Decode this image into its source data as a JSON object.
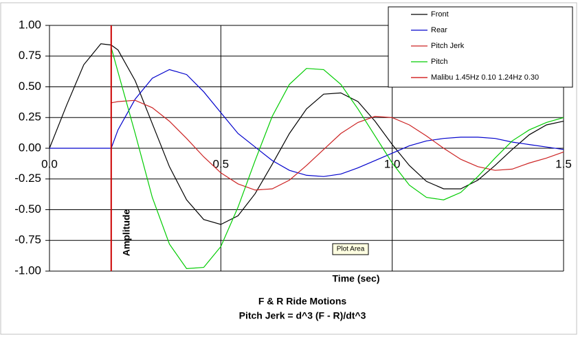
{
  "chart_data": {
    "type": "line",
    "title": "F & R Ride Motions",
    "subtitle": "Pitch Jerk = d^3 (F - R)/dt^3",
    "x_label": "Time (sec)",
    "y_label": "Amplitude",
    "annotation": "Plot Area",
    "x": [
      0,
      0.05,
      0.1,
      0.15,
      0.18,
      0.2,
      0.25,
      0.3,
      0.35,
      0.4,
      0.45,
      0.5,
      0.55,
      0.6,
      0.65,
      0.7,
      0.75,
      0.8,
      0.85,
      0.9,
      0.95,
      1.0,
      1.05,
      1.1,
      1.15,
      1.2,
      1.25,
      1.3,
      1.35,
      1.4,
      1.45,
      1.5
    ],
    "series": [
      {
        "name": "Front",
        "color": "#000000",
        "values": [
          0,
          0.35,
          0.68,
          0.85,
          0.84,
          0.8,
          0.55,
          0.2,
          -0.15,
          -0.42,
          -0.58,
          -0.62,
          -0.55,
          -0.37,
          -0.13,
          0.12,
          0.32,
          0.44,
          0.45,
          0.38,
          0.22,
          0.03,
          -0.14,
          -0.27,
          -0.33,
          -0.33,
          -0.26,
          -0.14,
          -0.01,
          0.11,
          0.19,
          0.22
        ]
      },
      {
        "name": "Rear",
        "color": "#0000cc",
        "values": [
          0,
          0,
          0,
          0,
          0,
          0.15,
          0.4,
          0.57,
          0.64,
          0.6,
          0.46,
          0.29,
          0.12,
          0.01,
          -0.1,
          -0.18,
          -0.22,
          -0.23,
          -0.21,
          -0.16,
          -0.1,
          -0.04,
          0.02,
          0.06,
          0.08,
          0.09,
          0.09,
          0.08,
          0.05,
          0.03,
          0.01,
          -0.01
        ]
      },
      {
        "name": "Pitch Jerk",
        "color": "#cc2222",
        "values": [
          null,
          null,
          null,
          null,
          0.37,
          0.38,
          0.39,
          0.33,
          0.22,
          0.08,
          -0.07,
          -0.2,
          -0.29,
          -0.34,
          -0.33,
          -0.26,
          -0.14,
          -0.01,
          0.12,
          0.21,
          0.26,
          0.25,
          0.19,
          0.1,
          0.0,
          -0.09,
          -0.15,
          -0.18,
          -0.17,
          -0.12,
          -0.08,
          -0.03
        ]
      },
      {
        "name": "Pitch",
        "color": "#00cc00",
        "values": [
          null,
          null,
          null,
          null,
          0.82,
          0.62,
          0.12,
          -0.4,
          -0.78,
          -0.98,
          -0.97,
          -0.8,
          -0.48,
          -0.1,
          0.26,
          0.52,
          0.65,
          0.64,
          0.52,
          0.32,
          0.1,
          -0.12,
          -0.3,
          -0.4,
          -0.42,
          -0.36,
          -0.23,
          -0.08,
          0.06,
          0.15,
          0.21,
          0.25
        ]
      },
      {
        "name": "Malibu 1.45Hz 0.10  1.24Hz 0.30",
        "color": "#cc0000",
        "x": [
          0.18,
          0.18
        ],
        "values": [
          1,
          -1
        ]
      }
    ],
    "xlim": [
      0,
      1.5
    ],
    "ylim": [
      -1,
      1
    ],
    "xticks": [
      {
        "value": 0,
        "label": "0.0"
      },
      0.5,
      {
        "value": 1,
        "label": "1.0"
      },
      1.5
    ],
    "yticks": [
      {
        "value": 1,
        "label": "1.00"
      },
      0.75,
      {
        "value": 0.5,
        "label": "0.50"
      },
      0.25,
      {
        "value": 0,
        "label": "0.00"
      },
      -0.25,
      {
        "value": -0.5,
        "label": "-0.50"
      },
      -0.75,
      {
        "value": -1,
        "label": "-1.00"
      }
    ],
    "grid": true,
    "legend": "top-right"
  }
}
